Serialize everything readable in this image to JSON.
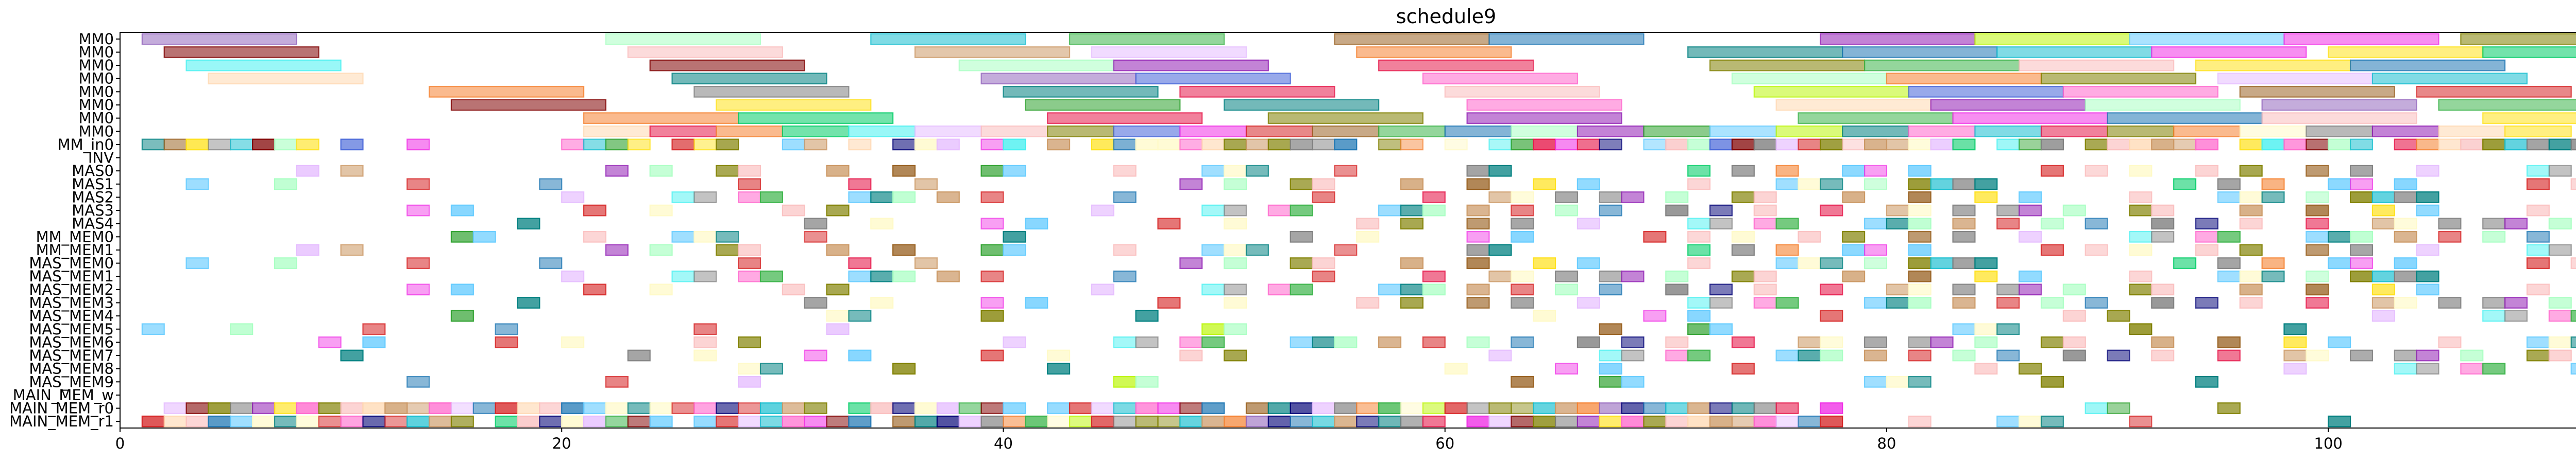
{
  "chart_data": {
    "type": "gantt",
    "title": "schedule9",
    "xlabel": "",
    "ylabel": "",
    "xlim": [
      0,
      116
    ],
    "grid": false,
    "legend": "none",
    "x_ticks": [
      0,
      20,
      40,
      60,
      80,
      100
    ],
    "rows": [
      "MM0",
      "MM0",
      "MM0",
      "MM0",
      "MM0",
      "MM0",
      "MM0",
      "MM0",
      "MM_in0",
      "INV",
      "MAS0",
      "MAS1",
      "MAS2",
      "MAS3",
      "MAS4",
      "MM_MEM0",
      "MM_MEM1",
      "MAS_MEM0",
      "MAS_MEM1",
      "MAS_MEM2",
      "MAS_MEM3",
      "MAS_MEM4",
      "MAS_MEM5",
      "MAS_MEM6",
      "MAS_MEM7",
      "MAS_MEM8",
      "MAS_MEM9",
      "MAIN_MEM_w",
      "MAIN_MEM_r0",
      "MAIN_MEM_r1"
    ],
    "palette": [
      "#e6194b",
      "#3cb44b",
      "#ffe119",
      "#4363d8",
      "#f58231",
      "#911eb4",
      "#46f0f0",
      "#f032e6",
      "#bcf60c",
      "#fabebe",
      "#008080",
      "#e6beff",
      "#9a6324",
      "#fffac8",
      "#800000",
      "#aaffc3",
      "#808000",
      "#ffd8b1",
      "#000075",
      "#808080",
      "#1f77b4",
      "#2ca02c",
      "#d62728",
      "#9467bd",
      "#17becf",
      "#7f7f7f",
      "#00cc66",
      "#ff66cc",
      "#66ccff",
      "#cc9966"
    ],
    "tasks": [
      {
        "row": 0,
        "start": 1,
        "dur": 7,
        "c": 23
      },
      {
        "row": 0,
        "start": 22,
        "dur": 7,
        "c": 15
      },
      {
        "row": 0,
        "start": 34,
        "dur": 7,
        "c": 24
      },
      {
        "row": 0,
        "start": 43,
        "dur": 7,
        "c": 1
      },
      {
        "row": 0,
        "start": 55,
        "dur": 7,
        "c": 12
      },
      {
        "row": 0,
        "start": 62,
        "dur": 7,
        "c": 20
      },
      {
        "row": 0,
        "start": 77,
        "dur": 7,
        "c": 5
      },
      {
        "row": 0,
        "start": 84,
        "dur": 7,
        "c": 8
      },
      {
        "row": 0,
        "start": 91,
        "dur": 7,
        "c": 28
      },
      {
        "row": 0,
        "start": 98,
        "dur": 7,
        "c": 7
      },
      {
        "row": 0,
        "start": 106,
        "dur": 7,
        "c": 16
      },
      {
        "row": 1,
        "start": 2,
        "dur": 7,
        "c": 14
      },
      {
        "row": 1,
        "start": 23,
        "dur": 7,
        "c": 9
      },
      {
        "row": 1,
        "start": 36,
        "dur": 7,
        "c": 29
      },
      {
        "row": 1,
        "start": 44,
        "dur": 7,
        "c": 11
      },
      {
        "row": 1,
        "start": 56,
        "dur": 7,
        "c": 4
      },
      {
        "row": 1,
        "start": 71,
        "dur": 7,
        "c": 10
      },
      {
        "row": 1,
        "start": 78,
        "dur": 7,
        "c": 20
      },
      {
        "row": 1,
        "start": 85,
        "dur": 7,
        "c": 24
      },
      {
        "row": 1,
        "start": 92,
        "dur": 7,
        "c": 7
      },
      {
        "row": 1,
        "start": 100,
        "dur": 7,
        "c": 2
      },
      {
        "row": 1,
        "start": 107,
        "dur": 7,
        "c": 26
      },
      {
        "row": 2,
        "start": 3,
        "dur": 7,
        "c": 6
      },
      {
        "row": 2,
        "start": 24,
        "dur": 7,
        "c": 14
      },
      {
        "row": 2,
        "start": 38,
        "dur": 7,
        "c": 15
      },
      {
        "row": 2,
        "start": 45,
        "dur": 7,
        "c": 5
      },
      {
        "row": 2,
        "start": 57,
        "dur": 7,
        "c": 0
      },
      {
        "row": 2,
        "start": 72,
        "dur": 7,
        "c": 16
      },
      {
        "row": 2,
        "start": 79,
        "dur": 7,
        "c": 1
      },
      {
        "row": 2,
        "start": 86,
        "dur": 7,
        "c": 9
      },
      {
        "row": 2,
        "start": 94,
        "dur": 7,
        "c": 2
      },
      {
        "row": 2,
        "start": 101,
        "dur": 7,
        "c": 20
      },
      {
        "row": 3,
        "start": 4,
        "dur": 7,
        "c": 17
      },
      {
        "row": 3,
        "start": 25,
        "dur": 7,
        "c": 10
      },
      {
        "row": 3,
        "start": 39,
        "dur": 7,
        "c": 23
      },
      {
        "row": 3,
        "start": 46,
        "dur": 7,
        "c": 3
      },
      {
        "row": 3,
        "start": 59,
        "dur": 7,
        "c": 27
      },
      {
        "row": 3,
        "start": 73,
        "dur": 7,
        "c": 15
      },
      {
        "row": 3,
        "start": 80,
        "dur": 7,
        "c": 4
      },
      {
        "row": 3,
        "start": 87,
        "dur": 7,
        "c": 16
      },
      {
        "row": 3,
        "start": 95,
        "dur": 7,
        "c": 11
      },
      {
        "row": 3,
        "start": 102,
        "dur": 7,
        "c": 24
      },
      {
        "row": 4,
        "start": 14,
        "dur": 7,
        "c": 4
      },
      {
        "row": 4,
        "start": 26,
        "dur": 7,
        "c": 19
      },
      {
        "row": 4,
        "start": 40,
        "dur": 7,
        "c": 10
      },
      {
        "row": 4,
        "start": 48,
        "dur": 7,
        "c": 0
      },
      {
        "row": 4,
        "start": 60,
        "dur": 7,
        "c": 9
      },
      {
        "row": 4,
        "start": 74,
        "dur": 7,
        "c": 8
      },
      {
        "row": 4,
        "start": 81,
        "dur": 7,
        "c": 3
      },
      {
        "row": 4,
        "start": 88,
        "dur": 7,
        "c": 27
      },
      {
        "row": 4,
        "start": 96,
        "dur": 7,
        "c": 12
      },
      {
        "row": 4,
        "start": 104,
        "dur": 7,
        "c": 22
      },
      {
        "row": 5,
        "start": 15,
        "dur": 7,
        "c": 14
      },
      {
        "row": 5,
        "start": 27,
        "dur": 7,
        "c": 2
      },
      {
        "row": 5,
        "start": 41,
        "dur": 7,
        "c": 21
      },
      {
        "row": 5,
        "start": 50,
        "dur": 7,
        "c": 10
      },
      {
        "row": 5,
        "start": 61,
        "dur": 7,
        "c": 27
      },
      {
        "row": 5,
        "start": 75,
        "dur": 7,
        "c": 17
      },
      {
        "row": 5,
        "start": 82,
        "dur": 7,
        "c": 5
      },
      {
        "row": 5,
        "start": 89,
        "dur": 7,
        "c": 15
      },
      {
        "row": 5,
        "start": 97,
        "dur": 7,
        "c": 23
      },
      {
        "row": 5,
        "start": 105,
        "dur": 7,
        "c": 1
      },
      {
        "row": 6,
        "start": 21,
        "dur": 7,
        "c": 4
      },
      {
        "row": 6,
        "start": 28,
        "dur": 7,
        "c": 26
      },
      {
        "row": 6,
        "start": 42,
        "dur": 7,
        "c": 0
      },
      {
        "row": 6,
        "start": 52,
        "dur": 7,
        "c": 16
      },
      {
        "row": 6,
        "start": 61,
        "dur": 7,
        "c": 5
      },
      {
        "row": 6,
        "start": 76,
        "dur": 7,
        "c": 1
      },
      {
        "row": 6,
        "start": 83,
        "dur": 7,
        "c": 7
      },
      {
        "row": 6,
        "start": 90,
        "dur": 7,
        "c": 20
      },
      {
        "row": 6,
        "start": 97,
        "dur": 7,
        "c": 9
      },
      {
        "row": 6,
        "start": 107,
        "dur": 7,
        "c": 2
      },
      {
        "row": 7,
        "start": 21,
        "dur": 3,
        "c": 17
      },
      {
        "row": 7,
        "start": 24,
        "dur": 3,
        "c": 0
      },
      {
        "row": 7,
        "start": 27,
        "dur": 3,
        "c": 4
      },
      {
        "row": 7,
        "start": 30,
        "dur": 3,
        "c": 26
      },
      {
        "row": 7,
        "start": 33,
        "dur": 3,
        "c": 6
      },
      {
        "row": 7,
        "start": 36,
        "dur": 3,
        "c": 11
      },
      {
        "row": 7,
        "start": 39,
        "dur": 3,
        "c": 9
      },
      {
        "row": 7,
        "start": 42,
        "dur": 3,
        "c": 16
      },
      {
        "row": 7,
        "start": 45,
        "dur": 3,
        "c": 3
      },
      {
        "row": 7,
        "start": 48,
        "dur": 3,
        "c": 7
      },
      {
        "row": 7,
        "start": 51,
        "dur": 3,
        "c": 22
      },
      {
        "row": 7,
        "start": 54,
        "dur": 3,
        "c": 12
      },
      {
        "row": 7,
        "start": 57,
        "dur": 3,
        "c": 1
      },
      {
        "row": 7,
        "start": 60,
        "dur": 3,
        "c": 20
      },
      {
        "row": 7,
        "start": 63,
        "dur": 3,
        "c": 15
      },
      {
        "row": 7,
        "start": 66,
        "dur": 3,
        "c": 5
      },
      {
        "row": 7,
        "start": 69,
        "dur": 3,
        "c": 21
      },
      {
        "row": 7,
        "start": 72,
        "dur": 3,
        "c": 28
      },
      {
        "row": 7,
        "start": 75,
        "dur": 3,
        "c": 8
      },
      {
        "row": 7,
        "start": 78,
        "dur": 3,
        "c": 10
      },
      {
        "row": 7,
        "start": 81,
        "dur": 3,
        "c": 27
      },
      {
        "row": 7,
        "start": 84,
        "dur": 3,
        "c": 24
      },
      {
        "row": 7,
        "start": 87,
        "dur": 3,
        "c": 0
      },
      {
        "row": 7,
        "start": 90,
        "dur": 3,
        "c": 16
      },
      {
        "row": 7,
        "start": 93,
        "dur": 3,
        "c": 4
      },
      {
        "row": 7,
        "start": 96,
        "dur": 3,
        "c": 13
      },
      {
        "row": 7,
        "start": 99,
        "dur": 3,
        "c": 25
      },
      {
        "row": 7,
        "start": 102,
        "dur": 3,
        "c": 5
      },
      {
        "row": 7,
        "start": 105,
        "dur": 3,
        "c": 17
      },
      {
        "row": 7,
        "start": 108,
        "dur": 3,
        "c": 2
      }
    ],
    "density_rows_from": 8
  }
}
